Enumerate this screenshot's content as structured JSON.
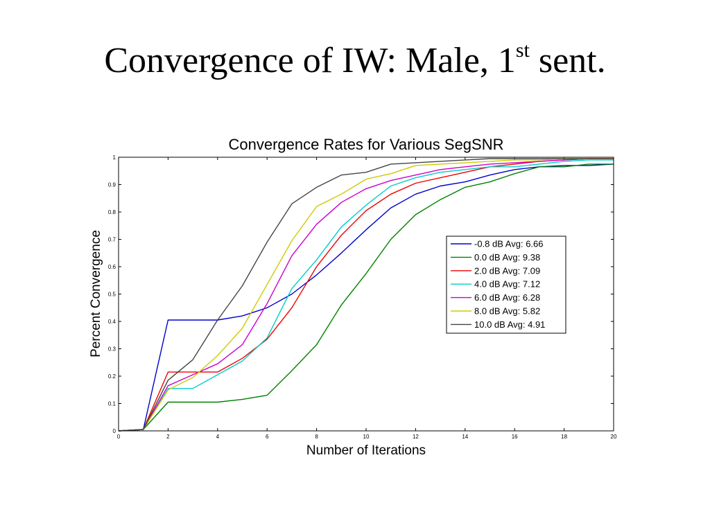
{
  "slide": {
    "title_main": "Convergence of IW: Male, 1",
    "title_sup": "st",
    "title_end": " sent."
  },
  "chart_data": {
    "type": "line",
    "title": "Convergence Rates for Various SegSNR",
    "xlabel": "Number of Iterations",
    "ylabel": "Percent Convergence",
    "xlim": [
      0,
      20
    ],
    "ylim": [
      0,
      1
    ],
    "xticks": [
      0,
      2,
      4,
      6,
      8,
      10,
      12,
      14,
      16,
      18,
      20
    ],
    "yticks": [
      0,
      0.1,
      0.2,
      0.3,
      0.4,
      0.5,
      0.6,
      0.7,
      0.8,
      0.9,
      1
    ],
    "grid": false,
    "legend_position": "right-center",
    "x": [
      0,
      1,
      2,
      3,
      4,
      5,
      6,
      7,
      8,
      9,
      10,
      11,
      12,
      13,
      14,
      15,
      16,
      17,
      18,
      19,
      20
    ],
    "series": [
      {
        "name": "-0.8  dB  Avg: 6.66",
        "color": "#0000cc",
        "values": [
          0,
          0.005,
          0.405,
          0.405,
          0.405,
          0.42,
          0.45,
          0.5,
          0.57,
          0.65,
          0.735,
          0.815,
          0.865,
          0.895,
          0.91,
          0.935,
          0.955,
          0.965,
          0.97,
          0.97,
          0.975
        ]
      },
      {
        "name": "0.0  dB  Avg: 9.38",
        "color": "#008000",
        "values": [
          0,
          0.005,
          0.105,
          0.105,
          0.105,
          0.115,
          0.13,
          0.22,
          0.315,
          0.46,
          0.575,
          0.7,
          0.79,
          0.845,
          0.89,
          0.91,
          0.94,
          0.965,
          0.965,
          0.975,
          0.975
        ]
      },
      {
        "name": "2.0  dB  Avg: 7.09",
        "color": "#ee0000",
        "values": [
          0,
          0.005,
          0.215,
          0.215,
          0.215,
          0.265,
          0.335,
          0.45,
          0.6,
          0.715,
          0.805,
          0.865,
          0.905,
          0.925,
          0.945,
          0.965,
          0.975,
          0.985,
          0.99,
          0.995,
          0.995
        ]
      },
      {
        "name": "4.0  dB  Avg: 7.12",
        "color": "#00cccc",
        "values": [
          0,
          0.005,
          0.155,
          0.155,
          0.205,
          0.255,
          0.34,
          0.52,
          0.625,
          0.745,
          0.825,
          0.895,
          0.925,
          0.945,
          0.955,
          0.965,
          0.965,
          0.975,
          0.985,
          0.99,
          0.99
        ]
      },
      {
        "name": "6.0  dB  Avg: 6.28",
        "color": "#cc00cc",
        "values": [
          0,
          0.005,
          0.165,
          0.205,
          0.245,
          0.315,
          0.465,
          0.64,
          0.755,
          0.835,
          0.885,
          0.915,
          0.935,
          0.955,
          0.965,
          0.975,
          0.98,
          0.985,
          0.99,
          0.995,
          0.995
        ]
      },
      {
        "name": "8.0  dB  Avg: 5.82",
        "color": "#cccc00",
        "values": [
          0,
          0.005,
          0.15,
          0.195,
          0.275,
          0.375,
          0.535,
          0.695,
          0.82,
          0.865,
          0.92,
          0.94,
          0.97,
          0.975,
          0.98,
          0.985,
          0.99,
          0.99,
          0.995,
          0.995,
          0.995
        ]
      },
      {
        "name": "10.0  dB  Avg: 4.91",
        "color": "#444444",
        "values": [
          0,
          0.005,
          0.185,
          0.26,
          0.405,
          0.53,
          0.69,
          0.83,
          0.89,
          0.935,
          0.945,
          0.975,
          0.98,
          0.985,
          0.99,
          0.995,
          0.995,
          0.995,
          0.995,
          0.995,
          0.995
        ]
      }
    ]
  }
}
